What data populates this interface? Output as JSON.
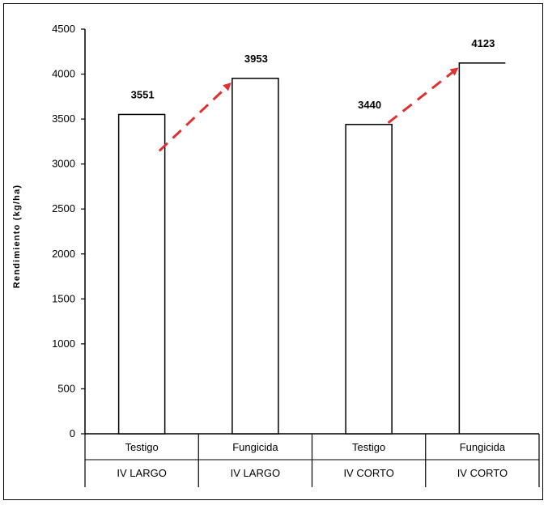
{
  "chart_data": {
    "type": "bar",
    "ylabel": "Rendimiento (kg/ha)",
    "ylim": [
      0,
      4500
    ],
    "yticks": [
      0,
      500,
      1000,
      1500,
      2000,
      2500,
      3000,
      3500,
      4000,
      4500
    ],
    "categories": [
      {
        "treatment": "Testigo",
        "group": "IV  LARGO"
      },
      {
        "treatment": "Fungicida",
        "group": "IV  LARGO"
      },
      {
        "treatment": "Testigo",
        "group": "IV  CORTO"
      },
      {
        "treatment": "Fungicida",
        "group": "IV  CORTO"
      }
    ],
    "values": [
      3551,
      3953,
      3440,
      4123
    ],
    "value_labels": [
      "3551",
      "3953",
      "3440",
      "4123"
    ],
    "bar_fill": "#ffffff",
    "bar_stroke": "#000000",
    "arrow_color": "#e03030",
    "arrows": [
      {
        "from_category": 0,
        "to_category": 1
      },
      {
        "from_category": 2,
        "to_category": 3
      }
    ],
    "grid": false
  }
}
